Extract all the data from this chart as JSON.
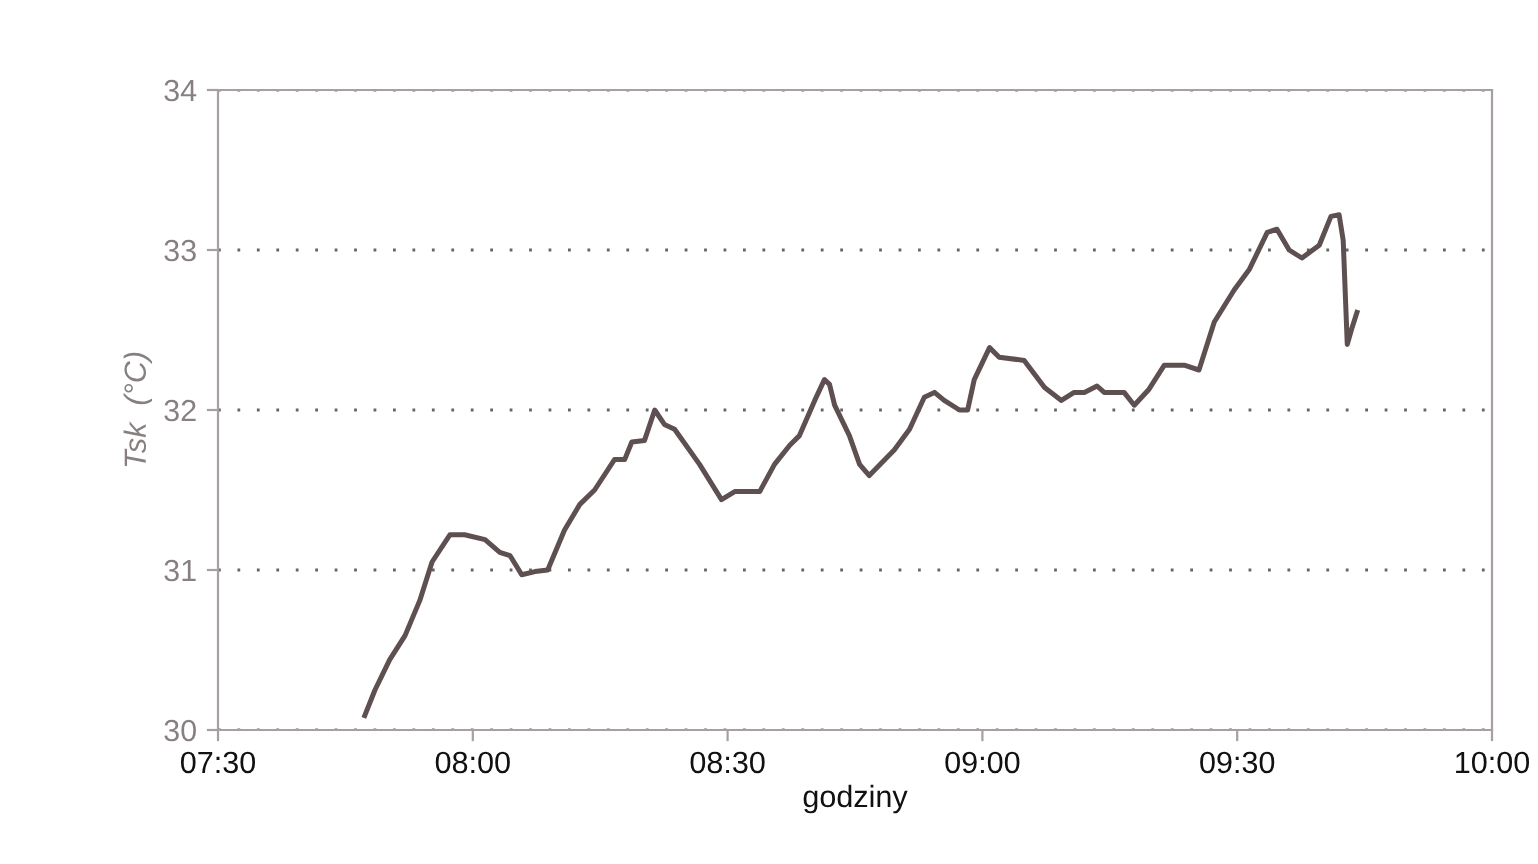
{
  "chart_data": {
    "type": "line",
    "xlabel": "godziny",
    "ylabel": "Tsk  (°C)",
    "xlim": [
      7.5,
      10
    ],
    "xticks": [
      {
        "value": 7.5,
        "label": "07:30"
      },
      {
        "value": 8,
        "label": "08:00"
      },
      {
        "value": 8.5,
        "label": "08:30"
      },
      {
        "value": 9,
        "label": "09:00"
      },
      {
        "value": 9.5,
        "label": "09:30"
      },
      {
        "value": 10,
        "label": "10:00"
      }
    ],
    "ylim": [
      30,
      34
    ],
    "yticks": [
      30,
      31,
      32,
      33,
      34
    ],
    "grid": "y",
    "legend": false,
    "marker": "none",
    "line_style": "solid",
    "series": [
      {
        "color": "#5e5050",
        "x": [
          7.788,
          7.808,
          7.837,
          7.867,
          7.896,
          7.92,
          7.955,
          7.984,
          8.024,
          8.053,
          8.073,
          8.096,
          8.122,
          8.147,
          8.18,
          8.21,
          8.239,
          8.278,
          8.298,
          8.312,
          8.337,
          8.357,
          8.376,
          8.396,
          8.445,
          8.488,
          8.514,
          8.563,
          8.592,
          8.622,
          8.641,
          8.671,
          8.69,
          8.7,
          8.71,
          8.739,
          8.759,
          8.778,
          8.827,
          8.857,
          8.886,
          8.906,
          8.925,
          8.955,
          8.971,
          8.984,
          9.014,
          9.033,
          9.082,
          9.122,
          9.155,
          9.18,
          9.2,
          9.225,
          9.239,
          9.278,
          9.298,
          9.327,
          9.357,
          9.396,
          9.425,
          9.455,
          9.494,
          9.524,
          9.559,
          9.578,
          9.602,
          9.627,
          9.661,
          9.684,
          9.7,
          9.708,
          9.716,
          9.724,
          9.735
        ],
        "values": [
          30.09,
          30.25,
          30.44,
          30.59,
          30.81,
          31.05,
          31.22,
          31.22,
          31.19,
          31.11,
          31.09,
          30.97,
          30.99,
          31.0,
          31.25,
          31.41,
          31.5,
          31.69,
          31.69,
          31.8,
          31.81,
          32.0,
          31.91,
          31.88,
          31.66,
          31.44,
          31.49,
          31.49,
          31.66,
          31.78,
          31.84,
          32.06,
          32.19,
          32.16,
          32.03,
          31.84,
          31.66,
          31.59,
          31.75,
          31.88,
          32.08,
          32.11,
          32.06,
          32.0,
          32.0,
          32.19,
          32.39,
          32.33,
          32.31,
          32.14,
          32.06,
          32.11,
          32.11,
          32.15,
          32.11,
          32.11,
          32.03,
          32.13,
          32.28,
          32.28,
          32.25,
          32.55,
          32.75,
          32.88,
          33.11,
          33.13,
          33.0,
          32.95,
          33.03,
          33.21,
          33.22,
          33.06,
          32.41,
          32.5,
          32.61
        ]
      }
    ]
  }
}
